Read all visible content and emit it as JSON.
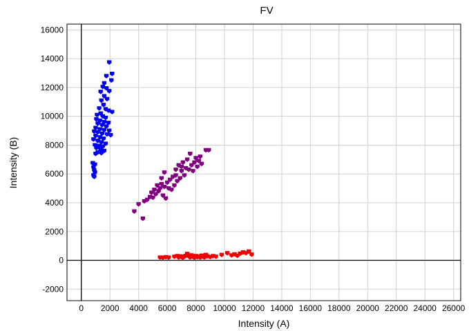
{
  "chart_data": {
    "type": "scatter",
    "title": "FV",
    "xlabel": "Intensity (A)",
    "ylabel": "Intensity (B)",
    "xlim": [
      -1000,
      26500
    ],
    "ylim": [
      -2800,
      16400
    ],
    "xticks": [
      0,
      2000,
      4000,
      6000,
      8000,
      10000,
      12000,
      14000,
      16000,
      18000,
      20000,
      22000,
      24000,
      26000
    ],
    "yticks": [
      -2000,
      0,
      2000,
      4000,
      6000,
      8000,
      10000,
      12000,
      14000,
      16000
    ],
    "grid": true,
    "legend": "none",
    "series": [
      {
        "color": "#0000ee",
        "points": [
          [
            1950,
            13750
          ],
          [
            2150,
            12950
          ],
          [
            1750,
            12800
          ],
          [
            2100,
            12500
          ],
          [
            1600,
            12300
          ],
          [
            1500,
            12050
          ],
          [
            1750,
            11950
          ],
          [
            1350,
            11700
          ],
          [
            1950,
            11750
          ],
          [
            1600,
            11400
          ],
          [
            1800,
            11200
          ],
          [
            1400,
            11100
          ],
          [
            1550,
            10800
          ],
          [
            1250,
            10550
          ],
          [
            1700,
            10500
          ],
          [
            1900,
            10400
          ],
          [
            2150,
            10300
          ],
          [
            1350,
            10200
          ],
          [
            1100,
            10100
          ],
          [
            1500,
            10000
          ],
          [
            1700,
            9900
          ],
          [
            1050,
            9800
          ],
          [
            1300,
            9700
          ],
          [
            1600,
            9600
          ],
          [
            1900,
            9550
          ],
          [
            1150,
            9500
          ],
          [
            1450,
            9400
          ],
          [
            1750,
            9300
          ],
          [
            1000,
            9200
          ],
          [
            1300,
            9100
          ],
          [
            1600,
            9050
          ],
          [
            1950,
            9000
          ],
          [
            900,
            8950
          ],
          [
            1150,
            8900
          ],
          [
            1450,
            8800
          ],
          [
            1800,
            8750
          ],
          [
            2050,
            8700
          ],
          [
            1000,
            8650
          ],
          [
            1300,
            8550
          ],
          [
            1550,
            8450
          ],
          [
            850,
            8400
          ],
          [
            1150,
            8300
          ],
          [
            1400,
            8200
          ],
          [
            1700,
            8100
          ],
          [
            950,
            8000
          ],
          [
            1250,
            7950
          ],
          [
            1500,
            7900
          ],
          [
            1050,
            7800
          ],
          [
            1350,
            7700
          ],
          [
            1600,
            7600
          ],
          [
            1150,
            7500
          ],
          [
            1400,
            7450
          ],
          [
            1000,
            7400
          ],
          [
            800,
            6750
          ],
          [
            950,
            6650
          ],
          [
            850,
            6450
          ],
          [
            900,
            6250
          ],
          [
            950,
            6100
          ],
          [
            850,
            5900
          ],
          [
            900,
            5800
          ]
        ]
      },
      {
        "color": "#800080",
        "points": [
          [
            3700,
            3400
          ],
          [
            4300,
            2900
          ],
          [
            4000,
            3900
          ],
          [
            4400,
            4100
          ],
          [
            4600,
            4200
          ],
          [
            4800,
            4400
          ],
          [
            4900,
            4700
          ],
          [
            5000,
            4350
          ],
          [
            5100,
            4900
          ],
          [
            5200,
            4600
          ],
          [
            5300,
            5200
          ],
          [
            5400,
            4800
          ],
          [
            5500,
            5000
          ],
          [
            5600,
            5300
          ],
          [
            5700,
            4500
          ],
          [
            5800,
            5100
          ],
          [
            5900,
            4300
          ],
          [
            5600,
            5700
          ],
          [
            5800,
            6100
          ],
          [
            6000,
            5400
          ],
          [
            6100,
            5000
          ],
          [
            6200,
            5600
          ],
          [
            6300,
            4900
          ],
          [
            6400,
            5800
          ],
          [
            6500,
            5200
          ],
          [
            6600,
            6300
          ],
          [
            6700,
            5500
          ],
          [
            6800,
            6600
          ],
          [
            6900,
            5700
          ],
          [
            7000,
            6200
          ],
          [
            7100,
            6800
          ],
          [
            7200,
            5900
          ],
          [
            7300,
            6400
          ],
          [
            7400,
            7000
          ],
          [
            7500,
            6300
          ],
          [
            7600,
            7400
          ],
          [
            7700,
            6600
          ],
          [
            7800,
            6200
          ],
          [
            7900,
            6800
          ],
          [
            8000,
            7100
          ],
          [
            8100,
            6500
          ],
          [
            8200,
            6900
          ],
          [
            8300,
            7200
          ],
          [
            8400,
            6700
          ],
          [
            8700,
            7650
          ],
          [
            8900,
            7650
          ],
          [
            7000,
            6500
          ],
          [
            6600,
            5900
          ]
        ]
      },
      {
        "color": "#ee0000",
        "points": [
          [
            5500,
            200
          ],
          [
            5700,
            180
          ],
          [
            5900,
            220
          ],
          [
            6100,
            190
          ],
          [
            6500,
            250
          ],
          [
            6700,
            300
          ],
          [
            6800,
            200
          ],
          [
            6900,
            280
          ],
          [
            7000,
            220
          ],
          [
            7100,
            180
          ],
          [
            7200,
            260
          ],
          [
            7300,
            320
          ],
          [
            7400,
            450
          ],
          [
            7500,
            280
          ],
          [
            7600,
            200
          ],
          [
            7700,
            350
          ],
          [
            7800,
            240
          ],
          [
            7900,
            180
          ],
          [
            8000,
            300
          ],
          [
            8100,
            220
          ],
          [
            8200,
            260
          ],
          [
            8300,
            190
          ],
          [
            8400,
            330
          ],
          [
            8500,
            250
          ],
          [
            8600,
            200
          ],
          [
            8700,
            380
          ],
          [
            8800,
            280
          ],
          [
            9000,
            230
          ],
          [
            9200,
            300
          ],
          [
            9400,
            260
          ],
          [
            9800,
            380
          ],
          [
            10200,
            500
          ],
          [
            10500,
            350
          ],
          [
            10700,
            420
          ],
          [
            10900,
            320
          ],
          [
            11100,
            470
          ],
          [
            11300,
            560
          ],
          [
            11500,
            500
          ],
          [
            11700,
            620
          ],
          [
            11900,
            400
          ]
        ]
      }
    ]
  }
}
